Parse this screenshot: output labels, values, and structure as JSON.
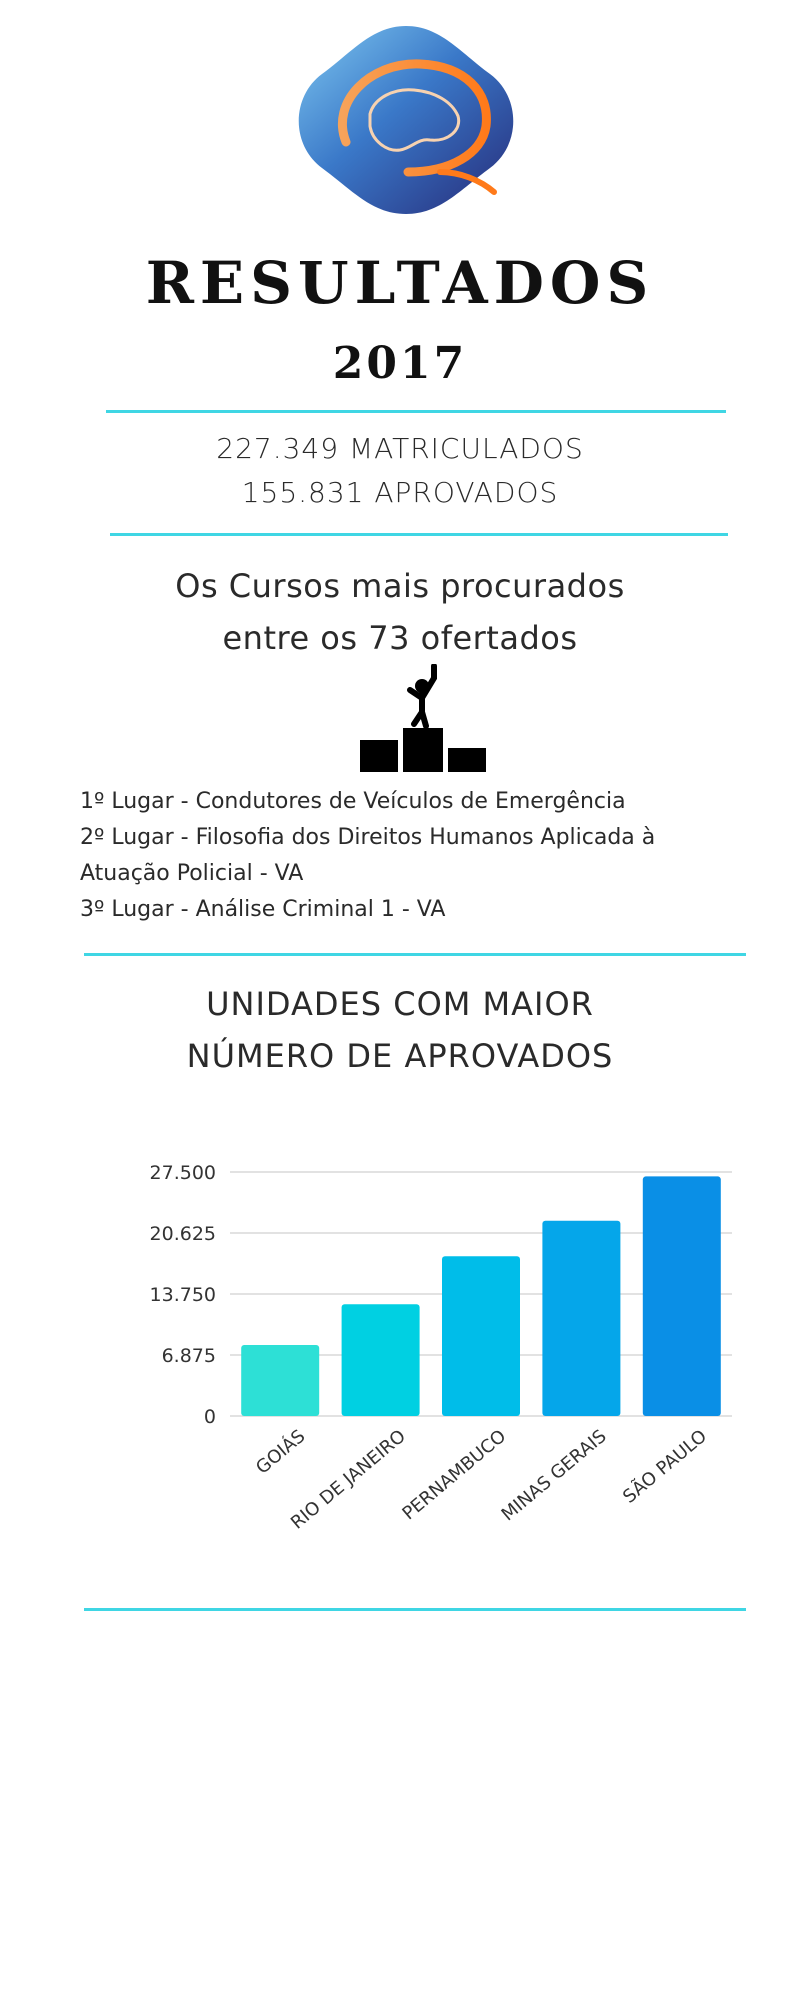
{
  "header": {
    "title": "RESULTADOS",
    "year": "2017"
  },
  "stats": {
    "matriculados": "227.349 MATRICULADOS",
    "aprovados": "155.831 APROVADOS"
  },
  "courses": {
    "heading_line1": "Os Cursos mais procurados",
    "heading_line2": "entre os 73 ofertados",
    "icon": "podium-winner-icon",
    "ranks": [
      "1º Lugar - Condutores de Veículos de Emergência",
      "2º Lugar - Filosofia dos Direitos Humanos Aplicada à",
      "Atuação Policial - VA",
      "3º Lugar - Análise Criminal 1 - VA"
    ]
  },
  "units": {
    "heading_line1": "UNIDADES COM MAIOR",
    "heading_line2": "NÚMERO DE APROVADOS"
  },
  "colors": {
    "accent_line": "#3fd6e4",
    "grid": "#d8d8d8"
  },
  "chart_data": {
    "type": "bar",
    "categories": [
      "GOIÁS",
      "RIO DE JANEIRO",
      "PERNAMBUCO",
      "MINAS GERAIS",
      "SÃO PAULO"
    ],
    "values": [
      8000,
      12600,
      18000,
      22000,
      27000
    ],
    "bar_colors": [
      "#2de0d6",
      "#00d0e2",
      "#00bde9",
      "#05a6ea",
      "#0a8fe6"
    ],
    "yticks": [
      "0",
      "6.875",
      "13.750",
      "20.625",
      "27.500"
    ],
    "ylim": [
      0,
      27500
    ],
    "grid": true
  }
}
